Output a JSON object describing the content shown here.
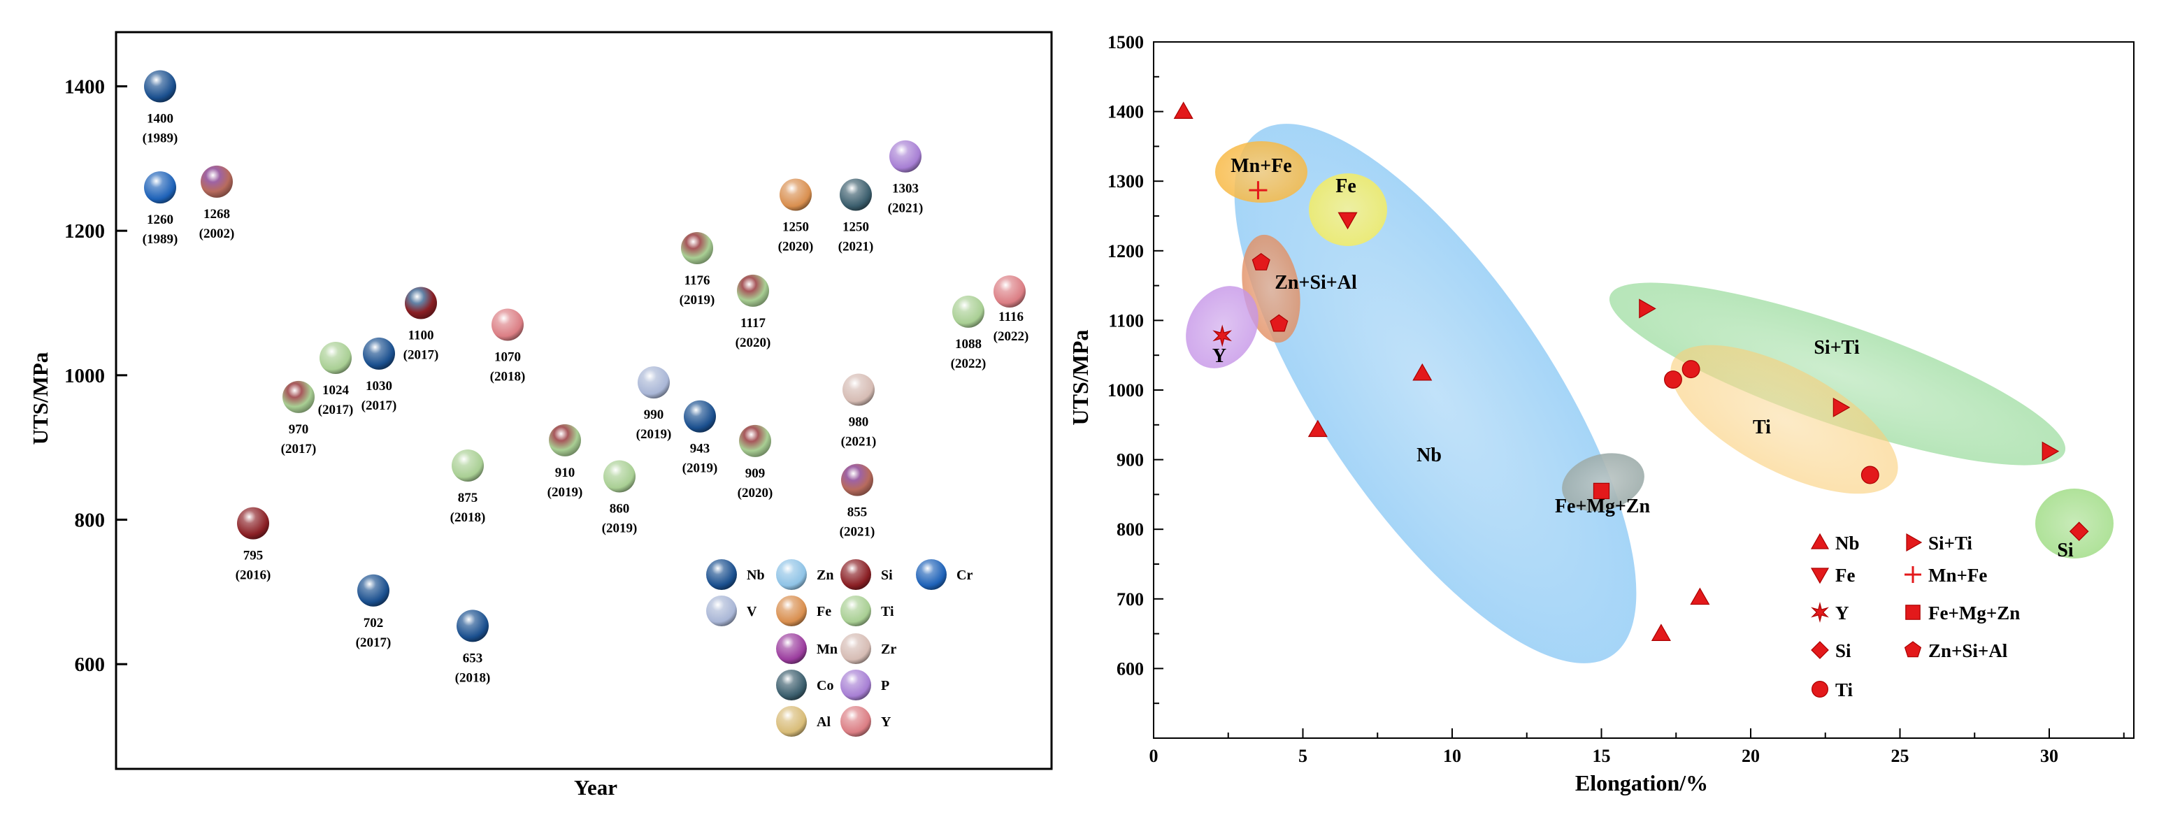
{
  "chart_data": [
    {
      "type": "scatter",
      "subtype": "bubble-timeline",
      "title": "",
      "xlabel": "Year",
      "ylabel": "UTS/MPa",
      "ylim": [
        455,
        1475
      ],
      "yticks": [
        600,
        800,
        1000,
        1200,
        1400
      ],
      "grid": false,
      "colors": {
        "Nb": "#1a4f8e",
        "Zn": "#8fc3e6",
        "Si": "#8a1f24",
        "Cr": "#1e62b8",
        "V": "#a9b6d6",
        "Fe": "#d98f4f",
        "Ti": "#a9cf94",
        "Mn": "#9b3d9e",
        "Zr": "#d6bcb4",
        "Co": "#3b5e6d",
        "P": "#a77fd4",
        "Al": "#d8bc78",
        "Y": "#db7e84",
        "Si+Mn": [
          "#7e2f86",
          "#b86b5e"
        ],
        "Si+Ti": [
          "#8a1f24",
          "#a9cf94"
        ],
        "Nb+Si": [
          "#2d5a8a",
          "#8a1f24"
        ]
      },
      "points": [
        {
          "value": 1400,
          "year": "(1989)",
          "element": "Nb",
          "label_side": "below"
        },
        {
          "value": 1260,
          "year": "(1989)",
          "element": "Cr",
          "label_side": "below"
        },
        {
          "value": 1268,
          "year": "(2002)",
          "element": "Si+Mn",
          "label_side": "below"
        },
        {
          "value": 795,
          "year": "(2016)",
          "element": "Si",
          "label_side": "below"
        },
        {
          "value": 970,
          "year": "(2017)",
          "element": "Si+Ti",
          "label_side": "below"
        },
        {
          "value": 1024,
          "year": "(2017)",
          "element": "Ti",
          "label_side": "below"
        },
        {
          "value": 1030,
          "year": "(2017)",
          "element": "Nb",
          "label_side": "below"
        },
        {
          "value": 702,
          "year": "(2017)",
          "element": "Nb",
          "label_side": "below"
        },
        {
          "value": 1100,
          "year": "(2017)",
          "element": "Nb+Si",
          "label_side": "below"
        },
        {
          "value": 875,
          "year": "(2018)",
          "element": "Ti",
          "label_side": "below"
        },
        {
          "value": 653,
          "year": "(2018)",
          "element": "Nb",
          "label_side": "below"
        },
        {
          "value": 1070,
          "year": "(2018)",
          "element": "Y",
          "label_side": "below"
        },
        {
          "value": 910,
          "year": "(2019)",
          "element": "Si+Ti",
          "label_side": "below"
        },
        {
          "value": 860,
          "year": "(2019)",
          "element": "Ti",
          "label_side": "below"
        },
        {
          "value": 990,
          "year": "(2019)",
          "element": "V",
          "label_side": "below"
        },
        {
          "value": 943,
          "year": "(2019)",
          "element": "Nb",
          "label_side": "below"
        },
        {
          "value": 1176,
          "year": "(2019)",
          "element": "Si+Ti",
          "label_side": "below"
        },
        {
          "value": 1117,
          "year": "(2020)",
          "element": "Si+Ti",
          "label_side": "below"
        },
        {
          "value": 909,
          "year": "(2020)",
          "element": "Si+Ti",
          "label_side": "below"
        },
        {
          "value": 1250,
          "year": "(2020)",
          "element": "Fe",
          "label_side": "below"
        },
        {
          "value": 1250,
          "year": "(2021)",
          "element": "Co",
          "label_side": "below"
        },
        {
          "value": 980,
          "year": "(2021)",
          "element": "Zr",
          "label_side": "below"
        },
        {
          "value": 855,
          "year": "(2021)",
          "element": "Si+Mn",
          "label_side": "below"
        },
        {
          "value": 1303,
          "year": "(2021)",
          "element": "P",
          "label_side": "below"
        },
        {
          "value": 1088,
          "year": "(2022)",
          "element": "Ti",
          "label_side": "below"
        },
        {
          "value": 1116,
          "year": "(2022)",
          "element": "Y",
          "label_side": "right"
        }
      ],
      "legend": {
        "placement": "bottom-right",
        "entries": [
          {
            "label": "Nb",
            "element": "Nb"
          },
          {
            "label": "Zn",
            "element": "Zn"
          },
          {
            "label": "Si",
            "element": "Si"
          },
          {
            "label": "Cr",
            "element": "Cr"
          },
          {
            "label": "V",
            "element": "V"
          },
          {
            "label": "Fe",
            "element": "Fe"
          },
          {
            "label": "Ti",
            "element": "Ti"
          },
          {
            "label": "Mn",
            "element": "Mn"
          },
          {
            "label": "Zr",
            "element": "Zr"
          },
          {
            "label": "Co",
            "element": "Co"
          },
          {
            "label": "P",
            "element": "P"
          },
          {
            "label": "Al",
            "element": "Al"
          },
          {
            "label": "Y",
            "element": "Y"
          }
        ]
      }
    },
    {
      "type": "scatter",
      "title": "",
      "xlabel": "Elongation/%",
      "ylabel": "UTS/MPa",
      "xlim": [
        0,
        32.5
      ],
      "ylim": [
        500,
        1500
      ],
      "xticks": [
        0,
        5,
        10,
        15,
        20,
        25,
        30
      ],
      "yticks": [
        600,
        700,
        800,
        900,
        1000,
        1100,
        1200,
        1300,
        1400,
        1500
      ],
      "grid": false,
      "marker_color": "#e3191b",
      "series": [
        {
          "name": "Nb",
          "marker": "triangle-up",
          "points": [
            [
              1,
              1400
            ],
            [
              5.5,
              943
            ],
            [
              9,
              1024
            ],
            [
              17,
              650
            ],
            [
              18.3,
              702
            ]
          ]
        },
        {
          "name": "Fe",
          "marker": "triangle-down",
          "points": [
            [
              6.5,
              1245
            ]
          ]
        },
        {
          "name": "Y",
          "marker": "star",
          "points": [
            [
              2.3,
              1078
            ]
          ]
        },
        {
          "name": "Si",
          "marker": "diamond",
          "points": [
            [
              31,
              797
            ]
          ]
        },
        {
          "name": "Ti",
          "marker": "circle",
          "points": [
            [
              17.4,
              1015
            ],
            [
              18,
              1030
            ],
            [
              24,
              878
            ]
          ]
        },
        {
          "name": "Si+Ti",
          "marker": "triangle-right",
          "points": [
            [
              16.5,
              1117
            ],
            [
              23,
              975
            ],
            [
              30,
              912
            ]
          ]
        },
        {
          "name": "Mn+Fe",
          "marker": "plus",
          "points": [
            [
              3.5,
              1287
            ]
          ]
        },
        {
          "name": "Fe+Mg+Zn",
          "marker": "square",
          "points": [
            [
              15,
              855
            ]
          ]
        },
        {
          "name": "Zn+Si+Al",
          "marker": "pentagon",
          "points": [
            [
              3.6,
              1183
            ],
            [
              4.2,
              1095
            ]
          ]
        }
      ],
      "regions": [
        {
          "label": "Nb",
          "fill": "#52aef0"
        },
        {
          "label": "Mn+Fe",
          "fill": "#f7b53a"
        },
        {
          "label": "Fe",
          "fill": "#f4ec5a"
        },
        {
          "label": "Zn+Si+Al",
          "fill": "#e08758"
        },
        {
          "label": "Y",
          "fill": "#c28ee6"
        },
        {
          "label": "Si+Ti",
          "fill": "#7fd283"
        },
        {
          "label": "Ti",
          "fill": "#f9cb70"
        },
        {
          "label": "Fe+Mg+Zn",
          "fill": "#98a8a6"
        },
        {
          "label": "Si",
          "fill": "#8ed66f"
        }
      ],
      "legend_labels": [
        "Nb",
        "Si+Ti",
        "Fe",
        "Mn+Fe",
        "Y",
        "Fe+Mg+Zn",
        "Si",
        "Zn+Si+Al",
        "Ti"
      ],
      "legend_placement": "bottom-right"
    }
  ]
}
